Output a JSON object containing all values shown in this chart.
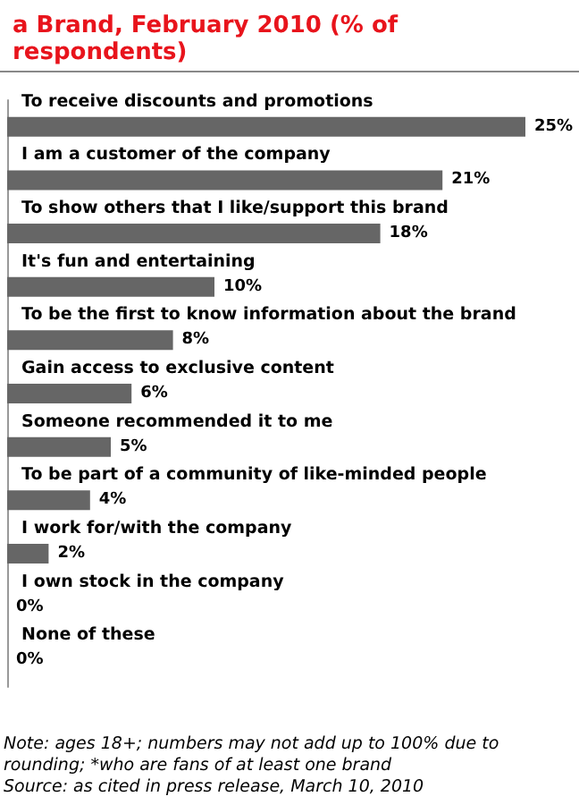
{
  "chart_data": {
    "type": "bar",
    "orientation": "horizontal",
    "title": "a Brand, February 2010 (% of respondents)",
    "categories": [
      "To receive discounts and promotions",
      "I am a customer of the company",
      "To show others that I like/support this brand",
      "It's fun and entertaining",
      "To be the first to know information about the brand",
      "Gain access to exclusive content",
      "Someone recommended it to me",
      "To be part of a community of like-minded people",
      "I work for/with the company",
      "I own stock in the company",
      "None of these"
    ],
    "values": [
      25,
      21,
      18,
      10,
      8,
      6,
      5,
      4,
      2,
      0,
      0
    ],
    "value_labels": [
      "25%",
      "21%",
      "18%",
      "10%",
      "8%",
      "6%",
      "5%",
      "4%",
      "2%",
      "0%",
      "0%"
    ],
    "color": "#666666",
    "annotations": [
      "Note: ages 18+; numbers may not add up to 100% due to rounding; *who are fans of at least one brand",
      "Source: as cited in press release, March 10, 2010"
    ]
  }
}
